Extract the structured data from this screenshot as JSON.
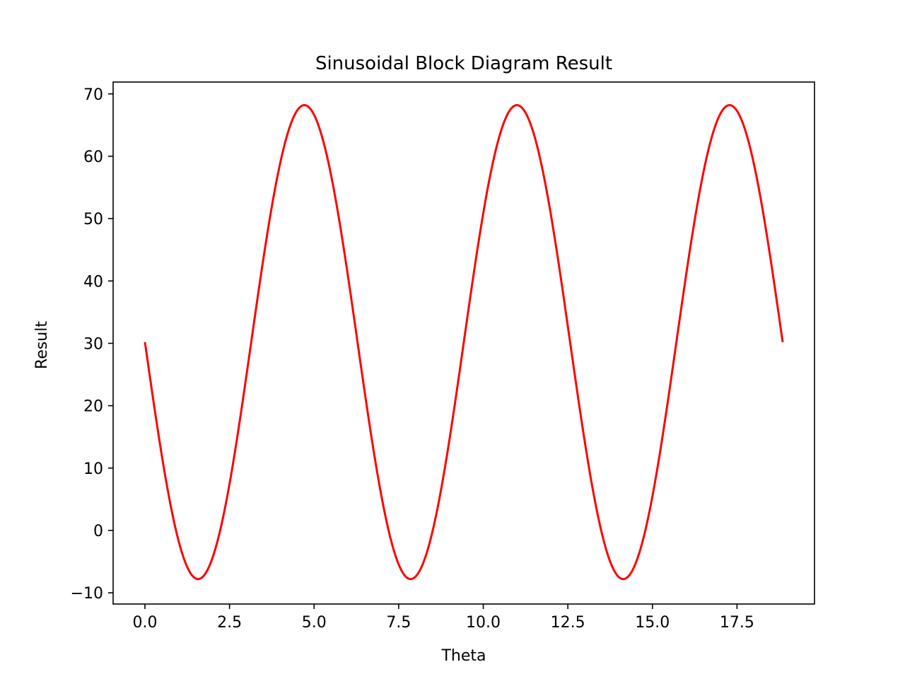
{
  "chart_data": {
    "type": "line",
    "title": "Sinusoidal Block Diagram Result",
    "xlabel": "Theta",
    "ylabel": "Result",
    "xlim": [
      -0.94,
      19.79
    ],
    "ylim": [
      -11.8,
      71.9
    ],
    "xticks": [
      0,
      2.5,
      5,
      7.5,
      10,
      12.5,
      15,
      17.5
    ],
    "xtick_labels": [
      "0.0",
      "2.5",
      "5.0",
      "7.5",
      "10.0",
      "12.5",
      "15.0",
      "17.5"
    ],
    "yticks": [
      -10,
      0,
      10,
      20,
      30,
      40,
      50,
      60,
      70
    ],
    "ytick_labels": [
      "−10",
      "0",
      "10",
      "20",
      "30",
      "40",
      "50",
      "60",
      "70"
    ],
    "grid": false,
    "series": [
      {
        "name": "Result",
        "color": "#ff0000",
        "function": "30.2 - 38 * sin(theta)",
        "x_start": 0,
        "x_end": 18.85,
        "points": 600,
        "key_points": [
          {
            "x": 0,
            "y": 30.2
          },
          {
            "x": 1.57,
            "y": -7.8
          },
          {
            "x": 4.71,
            "y": 68.2
          },
          {
            "x": 7.85,
            "y": -7.8
          },
          {
            "x": 10.99,
            "y": 68.2
          },
          {
            "x": 14.14,
            "y": -7.8
          },
          {
            "x": 17.28,
            "y": 68.2
          },
          {
            "x": 18.85,
            "y": 30.2
          }
        ]
      }
    ]
  }
}
